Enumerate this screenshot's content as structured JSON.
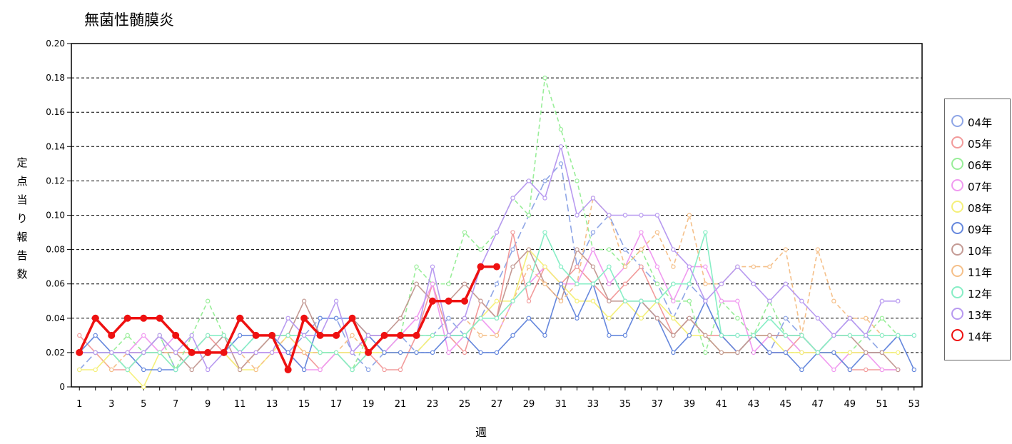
{
  "chart_data": {
    "type": "line",
    "title": "無菌性髄膜炎",
    "xlabel": "週",
    "ylabel": "定点当り報告数",
    "xlim": [
      1,
      53
    ],
    "ylim": [
      0,
      0.2
    ],
    "x_ticks": [
      1,
      3,
      5,
      7,
      9,
      11,
      13,
      15,
      17,
      19,
      21,
      23,
      25,
      27,
      29,
      31,
      33,
      35,
      37,
      39,
      41,
      43,
      45,
      47,
      49,
      51,
      53
    ],
    "y_ticks": [
      0,
      0.02,
      0.04,
      0.06,
      0.08,
      0.1,
      0.12,
      0.14,
      0.16,
      0.18,
      0.2
    ],
    "y_tick_labels": [
      "0",
      "0.02",
      "0.04",
      "0.06",
      "0.08",
      "0.10",
      "0.12",
      "0.14",
      "0.16",
      "0.18",
      "0.20"
    ],
    "grid": "horizontal-dashed",
    "legend_position": "right",
    "series": [
      {
        "name": "04年",
        "color": "#8fa6e6",
        "dash": "10,5",
        "values": [
          0.01,
          0.02,
          0.02,
          0.01,
          0.02,
          0.03,
          0.01,
          0.02,
          0.02,
          0.03,
          0.02,
          0.03,
          0.03,
          0.02,
          0.03,
          0.04,
          0.04,
          0.02,
          0.01,
          0.02,
          0.03,
          0.02,
          0.03,
          0.04,
          0.03,
          0.04,
          0.06,
          0.08,
          0.1,
          0.12,
          0.13,
          0.07,
          0.09,
          0.1,
          0.08,
          0.07,
          0.06,
          0.04,
          0.06,
          0.05,
          0.03,
          0.03,
          0.03,
          0.02,
          0.04,
          0.03,
          0.02,
          0.03,
          0.04,
          0.03,
          0.02,
          0.03,
          0.03
        ]
      },
      {
        "name": "05年",
        "color": "#f29b9b",
        "dash": "",
        "values": [
          0.03,
          0.02,
          0.01,
          0.01,
          0.02,
          0.03,
          0.02,
          0.02,
          0.03,
          0.02,
          0.01,
          0.02,
          0.03,
          0.02,
          0.02,
          0.01,
          0.02,
          0.01,
          0.02,
          0.01,
          0.01,
          0.03,
          0.06,
          0.03,
          0.02,
          0.05,
          0.04,
          0.09,
          0.05,
          0.07,
          0.06,
          0.07,
          0.06,
          0.05,
          0.06,
          0.07,
          0.05,
          0.03,
          0.04,
          0.03,
          0.03,
          0.02,
          0.03,
          0.02,
          0.02,
          0.03,
          0.02,
          0.02,
          0.01,
          0.01,
          0.01,
          0.01,
          null
        ]
      },
      {
        "name": "06年",
        "color": "#99ee99",
        "dash": "6,4",
        "values": [
          0.02,
          0.02,
          0.02,
          0.03,
          0.02,
          0.03,
          0.01,
          0.03,
          0.05,
          0.03,
          0.02,
          0.02,
          0.03,
          0.03,
          0.03,
          0.02,
          0.02,
          0.01,
          0.03,
          0.02,
          0.03,
          0.07,
          0.06,
          0.06,
          0.09,
          0.08,
          0.09,
          0.11,
          0.1,
          0.18,
          0.15,
          0.12,
          0.08,
          0.08,
          0.07,
          0.08,
          0.06,
          0.05,
          0.05,
          0.02,
          0.05,
          0.04,
          0.03,
          0.05,
          0.03,
          0.02,
          0.02,
          0.02,
          0.02,
          0.03,
          0.04,
          0.03,
          null
        ]
      },
      {
        "name": "07年",
        "color": "#f09af0",
        "dash": "",
        "values": [
          0.02,
          0.02,
          0.02,
          0.02,
          0.03,
          0.02,
          0.03,
          0.02,
          0.02,
          0.02,
          0.02,
          0.02,
          0.02,
          0.02,
          0.01,
          0.01,
          0.02,
          0.02,
          0.03,
          0.02,
          0.03,
          0.04,
          0.06,
          0.02,
          0.03,
          0.04,
          0.03,
          0.05,
          0.06,
          0.07,
          0.06,
          0.06,
          0.08,
          0.06,
          0.07,
          0.09,
          0.07,
          0.05,
          0.07,
          0.07,
          0.05,
          0.05,
          0.02,
          0.03,
          0.03,
          0.02,
          0.02,
          0.01,
          0.02,
          0.02,
          0.01,
          0.01,
          null
        ]
      },
      {
        "name": "08年",
        "color": "#f5f07a",
        "dash": "",
        "values": [
          0.01,
          0.01,
          0.02,
          0.01,
          0.0,
          0.02,
          0.01,
          0.02,
          0.02,
          0.02,
          0.01,
          0.01,
          0.02,
          0.03,
          0.02,
          0.02,
          0.02,
          0.02,
          0.02,
          0.02,
          0.02,
          0.02,
          0.03,
          0.03,
          0.03,
          0.04,
          0.05,
          0.05,
          0.08,
          0.07,
          0.06,
          0.05,
          0.05,
          0.04,
          0.05,
          0.04,
          0.05,
          0.04,
          0.03,
          0.03,
          0.02,
          0.02,
          0.03,
          0.03,
          0.02,
          0.02,
          0.02,
          0.02,
          0.02,
          0.02,
          0.02,
          0.02,
          null
        ]
      },
      {
        "name": "09年",
        "color": "#6688dd",
        "dash": "",
        "values": [
          0.02,
          0.03,
          0.02,
          0.02,
          0.01,
          0.01,
          0.01,
          0.02,
          0.02,
          0.02,
          0.03,
          0.03,
          0.03,
          0.02,
          0.01,
          0.04,
          0.04,
          0.04,
          0.03,
          0.02,
          0.02,
          0.02,
          0.02,
          0.03,
          0.03,
          0.02,
          0.02,
          0.03,
          0.04,
          0.03,
          0.06,
          0.04,
          0.06,
          0.03,
          0.03,
          0.05,
          0.04,
          0.02,
          0.03,
          0.05,
          0.03,
          0.02,
          0.03,
          0.02,
          0.02,
          0.01,
          0.02,
          0.02,
          0.01,
          0.02,
          0.02,
          0.03,
          0.01
        ]
      },
      {
        "name": "10年",
        "color": "#c49a94",
        "dash": "",
        "values": [
          0.02,
          0.02,
          0.02,
          0.02,
          0.02,
          0.02,
          0.02,
          0.01,
          0.02,
          0.03,
          0.01,
          0.02,
          0.03,
          0.03,
          0.05,
          0.03,
          0.03,
          0.04,
          0.03,
          0.03,
          0.04,
          0.06,
          0.05,
          0.05,
          0.06,
          0.05,
          0.04,
          0.07,
          0.08,
          0.06,
          0.05,
          0.08,
          0.07,
          0.05,
          0.05,
          0.05,
          0.04,
          0.03,
          0.04,
          0.03,
          0.02,
          0.02,
          0.03,
          0.03,
          0.03,
          0.03,
          0.02,
          0.03,
          0.03,
          0.02,
          0.02,
          0.01,
          null
        ]
      },
      {
        "name": "11年",
        "color": "#f5c08a",
        "dash": "6,4",
        "values": [
          0.02,
          0.02,
          0.01,
          0.02,
          0.02,
          0.02,
          0.02,
          0.02,
          0.02,
          0.02,
          0.02,
          0.01,
          0.02,
          0.03,
          0.02,
          0.02,
          0.02,
          0.03,
          0.02,
          0.03,
          0.03,
          0.03,
          0.03,
          0.03,
          0.04,
          0.03,
          0.03,
          0.05,
          0.07,
          0.06,
          0.05,
          0.06,
          0.11,
          0.1,
          0.07,
          0.08,
          0.09,
          0.07,
          0.1,
          0.06,
          0.06,
          0.07,
          0.07,
          0.07,
          0.08,
          0.03,
          0.08,
          0.05,
          0.04,
          0.04,
          0.03,
          0.03,
          null
        ]
      },
      {
        "name": "12年",
        "color": "#88eec6",
        "dash": "",
        "values": [
          0.02,
          0.02,
          0.02,
          0.01,
          0.02,
          0.02,
          0.01,
          0.02,
          0.03,
          0.03,
          0.02,
          0.03,
          0.03,
          0.03,
          0.03,
          0.02,
          0.02,
          0.01,
          0.02,
          0.03,
          0.03,
          0.03,
          0.03,
          0.03,
          0.03,
          0.04,
          0.04,
          0.05,
          0.06,
          0.09,
          0.07,
          0.06,
          0.06,
          0.07,
          0.05,
          0.05,
          0.05,
          0.06,
          0.06,
          0.09,
          0.03,
          0.03,
          0.03,
          0.04,
          0.03,
          0.03,
          0.02,
          0.03,
          0.03,
          0.03,
          0.03,
          0.03,
          0.03
        ]
      },
      {
        "name": "13年",
        "color": "#b89af0",
        "dash": "",
        "values": [
          0.02,
          0.02,
          0.02,
          0.02,
          0.02,
          0.03,
          0.02,
          0.03,
          0.01,
          0.02,
          0.02,
          0.02,
          0.02,
          0.04,
          0.03,
          0.03,
          0.05,
          0.02,
          0.03,
          0.03,
          0.03,
          0.03,
          0.07,
          0.03,
          0.04,
          0.07,
          0.09,
          0.11,
          0.12,
          0.11,
          0.14,
          0.1,
          0.11,
          0.1,
          0.1,
          0.1,
          0.1,
          0.08,
          0.07,
          0.05,
          0.06,
          0.07,
          0.06,
          0.05,
          0.06,
          0.05,
          0.04,
          0.03,
          0.04,
          0.03,
          0.05,
          0.05,
          null
        ]
      },
      {
        "name": "14年",
        "color": "#ee1111",
        "dash": "",
        "highlight": true,
        "values": [
          0.02,
          0.04,
          0.03,
          0.04,
          0.04,
          0.04,
          0.03,
          0.02,
          0.02,
          0.02,
          0.04,
          0.03,
          0.03,
          0.01,
          0.04,
          0.03,
          0.03,
          0.04,
          0.02,
          0.03,
          0.03,
          0.03,
          0.05,
          0.05,
          0.05,
          0.07,
          0.07
        ]
      }
    ]
  }
}
